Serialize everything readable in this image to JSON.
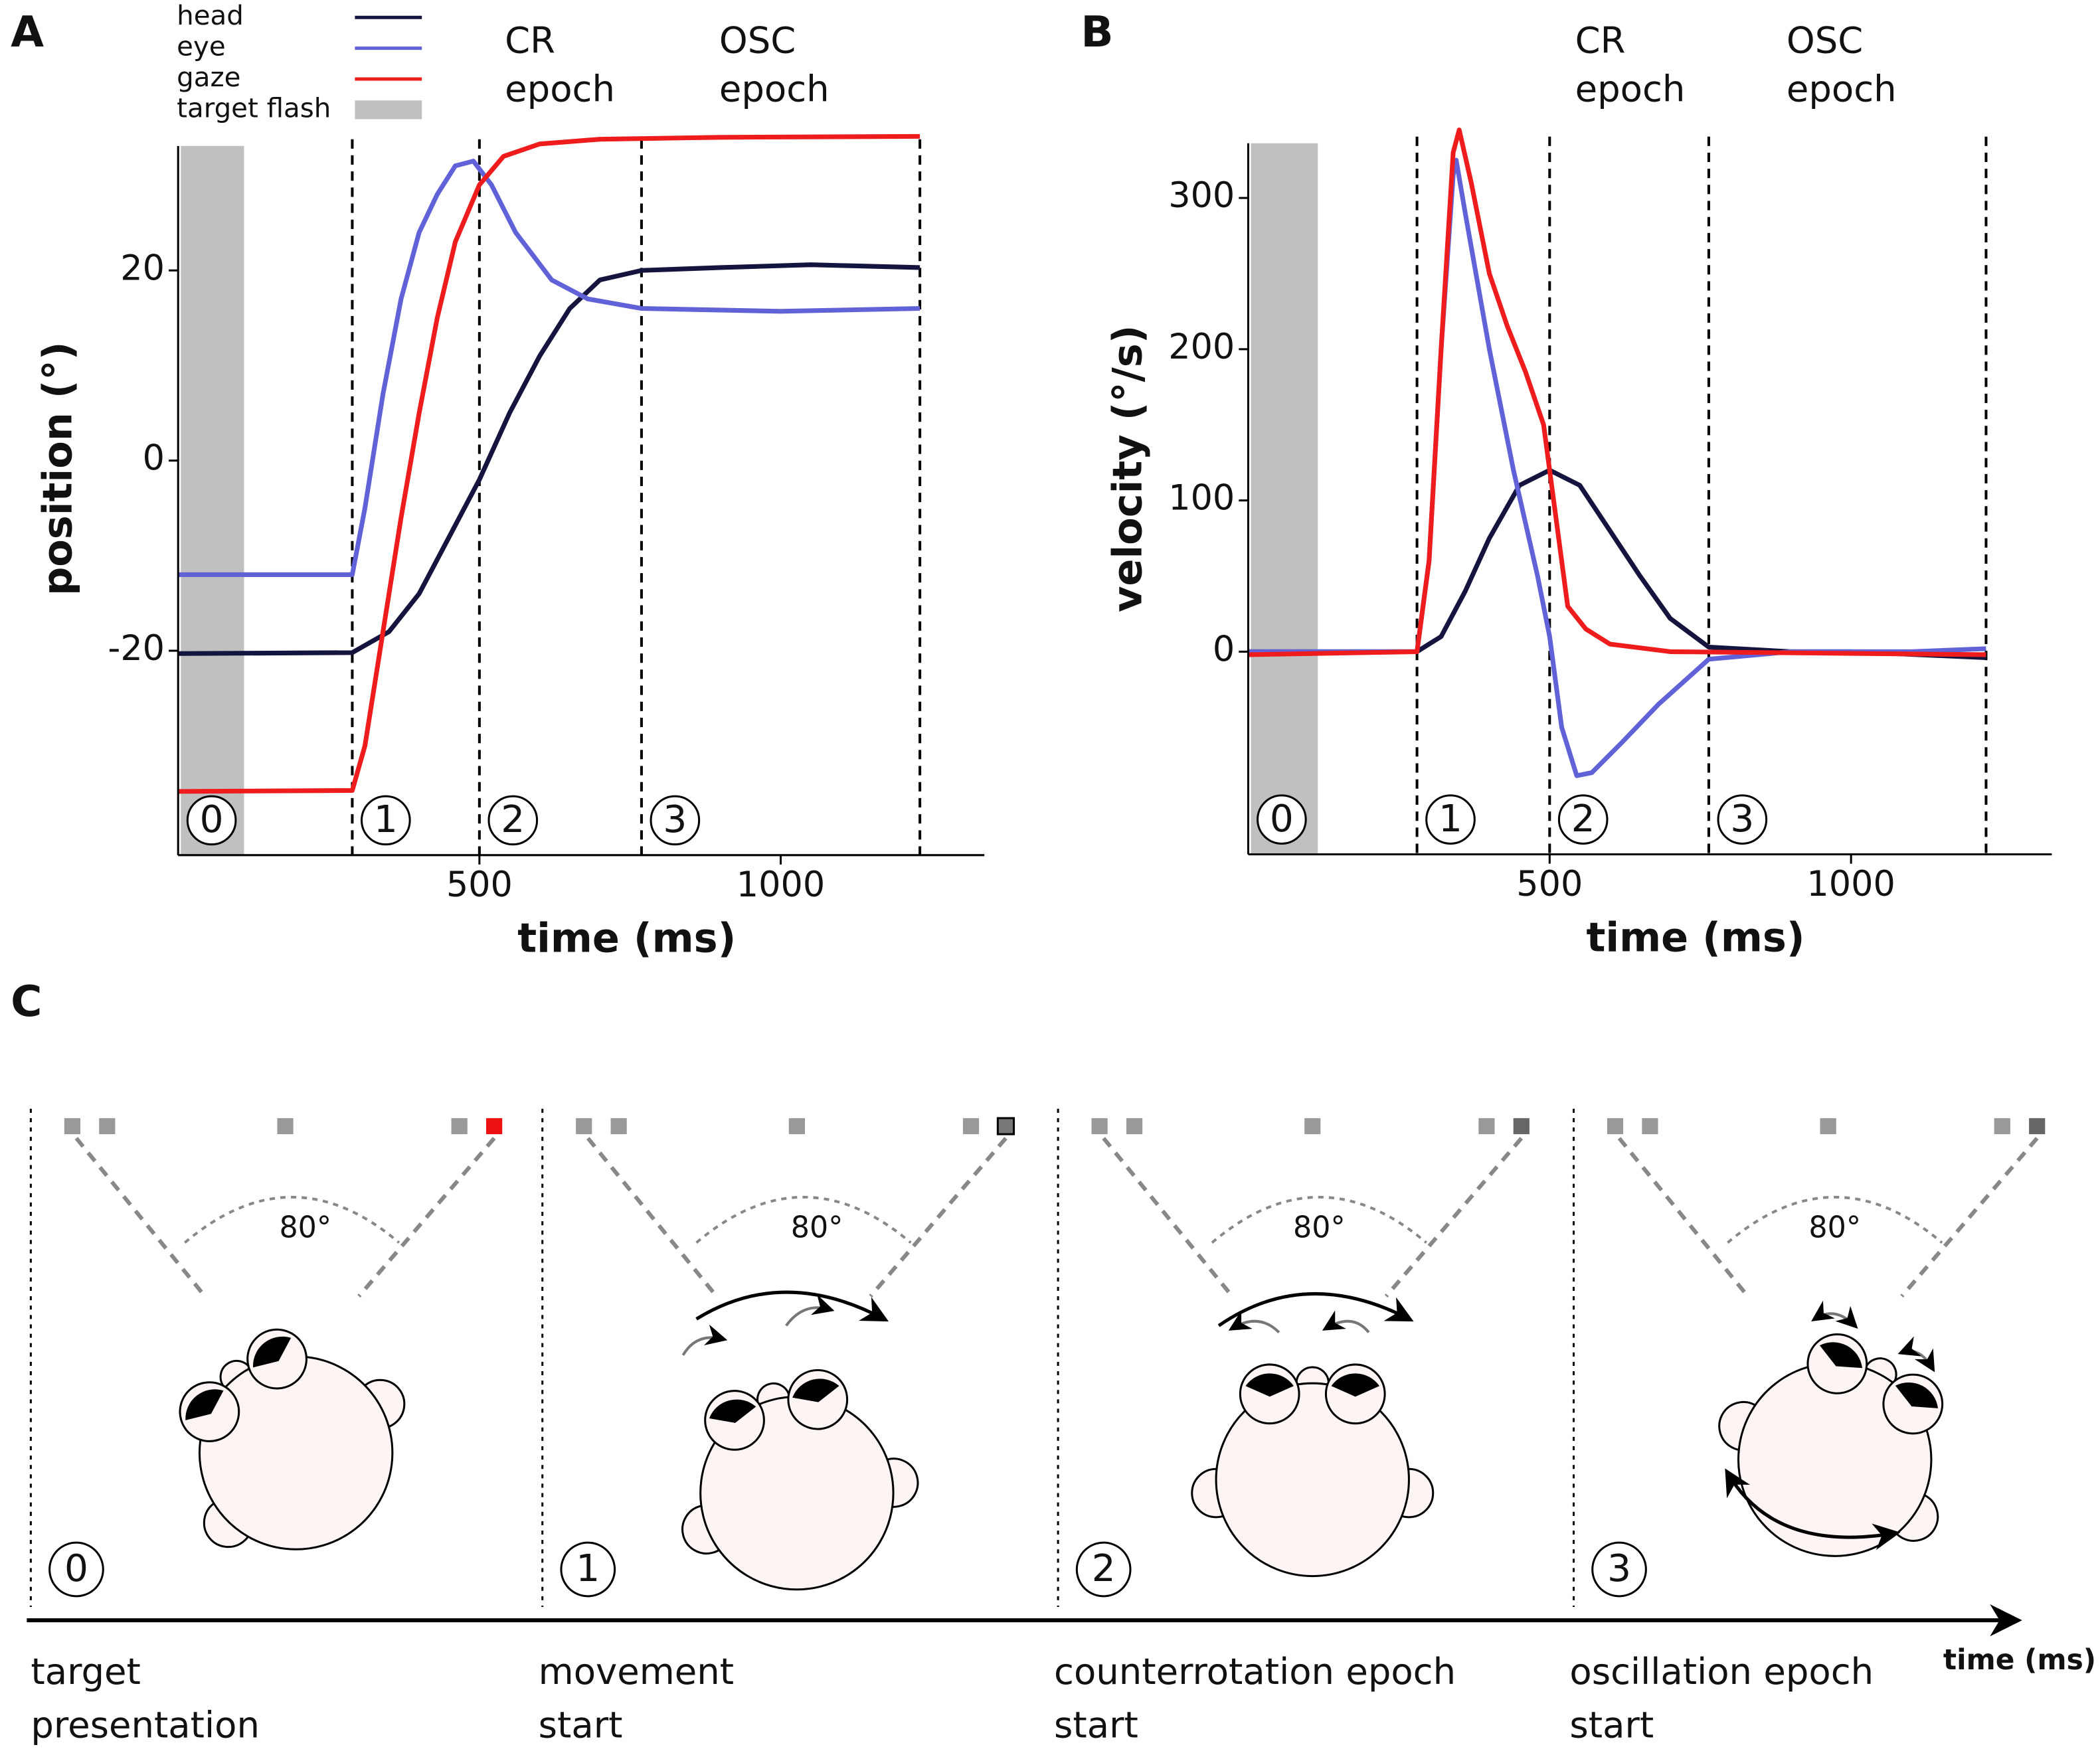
{
  "chart_data": [
    {
      "type": "line",
      "panel_label": "A",
      "xlabel": "time (ms)",
      "ylabel": "position (°)",
      "xlim": [
        0,
        1338
      ],
      "ylim": [
        -41.5,
        34.5
      ],
      "xticks": [
        500,
        1000
      ],
      "yticks": [
        -20,
        0,
        20
      ],
      "legend": true,
      "flash": {
        "name": "target flash",
        "range": [
          0,
          105
        ],
        "color": "#c0c0c0"
      },
      "vlines": [
        289,
        500,
        769,
        1231
      ],
      "epoch_numbers": [
        "0",
        "1",
        "2",
        "3"
      ],
      "annotations": [
        {
          "lines": [
            "CR",
            "epoch"
          ],
          "at": 1
        },
        {
          "lines": [
            "OSC",
            "epoch"
          ],
          "at": 2
        }
      ],
      "series": [
        {
          "name": "head",
          "color": "#14143f",
          "x": [
            0,
            289,
            350,
            400,
            450,
            500,
            550,
            600,
            650,
            700,
            769,
            900,
            1050,
            1231
          ],
          "values": [
            -20.3,
            -20.2,
            -18,
            -14,
            -8,
            -2,
            5,
            11,
            16,
            19,
            20,
            20.3,
            20.6,
            20.3
          ]
        },
        {
          "name": "eye",
          "color": "#6262d8",
          "x": [
            0,
            289,
            310,
            340,
            370,
            400,
            430,
            460,
            490,
            520,
            560,
            620,
            680,
            769,
            1000,
            1231
          ],
          "values": [
            -12,
            -12,
            -5,
            7,
            17,
            24,
            28,
            31,
            31.5,
            29,
            24,
            19,
            17,
            16,
            15.7,
            16
          ]
        },
        {
          "name": "gaze",
          "color": "#ee1c1c",
          "x": [
            0,
            289,
            310,
            340,
            370,
            400,
            430,
            460,
            500,
            540,
            600,
            700,
            900,
            1231
          ],
          "values": [
            -34.8,
            -34.7,
            -30,
            -18,
            -6,
            5,
            15,
            23,
            29,
            32,
            33.3,
            33.8,
            34,
            34.1
          ]
        }
      ]
    },
    {
      "type": "line",
      "panel_label": "B",
      "xlabel": "time (ms)",
      "ylabel": "velocity (°/s)",
      "xlim": [
        0,
        1333
      ],
      "ylim": [
        -134,
        345
      ],
      "xticks": [
        500,
        1000
      ],
      "yticks": [
        0,
        100,
        200,
        300
      ],
      "legend": false,
      "flash": {
        "range": [
          0,
          111
        ],
        "color": "#c0c0c0"
      },
      "vlines": [
        280,
        500,
        764,
        1224
      ],
      "epoch_numbers": [
        "0",
        "1",
        "2",
        "3"
      ],
      "annotations": [
        {
          "lines": [
            "CR",
            "epoch"
          ],
          "at": 1
        },
        {
          "lines": [
            "OSC",
            "epoch"
          ],
          "at": 2
        }
      ],
      "series": [
        {
          "name": "head",
          "color": "#14143f",
          "x": [
            0,
            280,
            320,
            360,
            400,
            450,
            500,
            550,
            600,
            650,
            700,
            764,
            900,
            1000,
            1224
          ],
          "values": [
            0,
            0,
            10,
            40,
            75,
            110,
            120,
            110,
            80,
            50,
            22,
            3,
            0,
            0,
            -4
          ]
        },
        {
          "name": "eye",
          "color": "#6262d8",
          "x": [
            0,
            280,
            300,
            320,
            340,
            345,
            360,
            400,
            440,
            480,
            500,
            520,
            545,
            570,
            620,
            680,
            764,
            900,
            1100,
            1224
          ],
          "values": [
            0,
            0,
            60,
            200,
            315,
            325,
            290,
            200,
            120,
            50,
            10,
            -50,
            -82,
            -80,
            -60,
            -35,
            -5,
            0,
            0,
            2
          ]
        },
        {
          "name": "gaze",
          "color": "#ee1c1c",
          "x": [
            0,
            280,
            300,
            320,
            340,
            350,
            370,
            400,
            430,
            460,
            490,
            510,
            530,
            560,
            600,
            700,
            1224
          ],
          "values": [
            -2,
            0,
            60,
            200,
            330,
            345,
            310,
            250,
            215,
            185,
            150,
            90,
            30,
            15,
            5,
            0,
            -2
          ]
        }
      ]
    }
  ],
  "panel_c": {
    "label": "C",
    "angle_label": "80°",
    "axis_label": "time (ms)",
    "frames": [
      {
        "number": "0",
        "caption": [
          "target",
          "presentation"
        ]
      },
      {
        "number": "1",
        "caption": [
          "movement",
          "start"
        ]
      },
      {
        "number": "2",
        "caption": [
          "counterrotation epoch",
          "start"
        ]
      },
      {
        "number": "3",
        "caption": [
          "oscillation epoch",
          "start"
        ]
      }
    ]
  }
}
